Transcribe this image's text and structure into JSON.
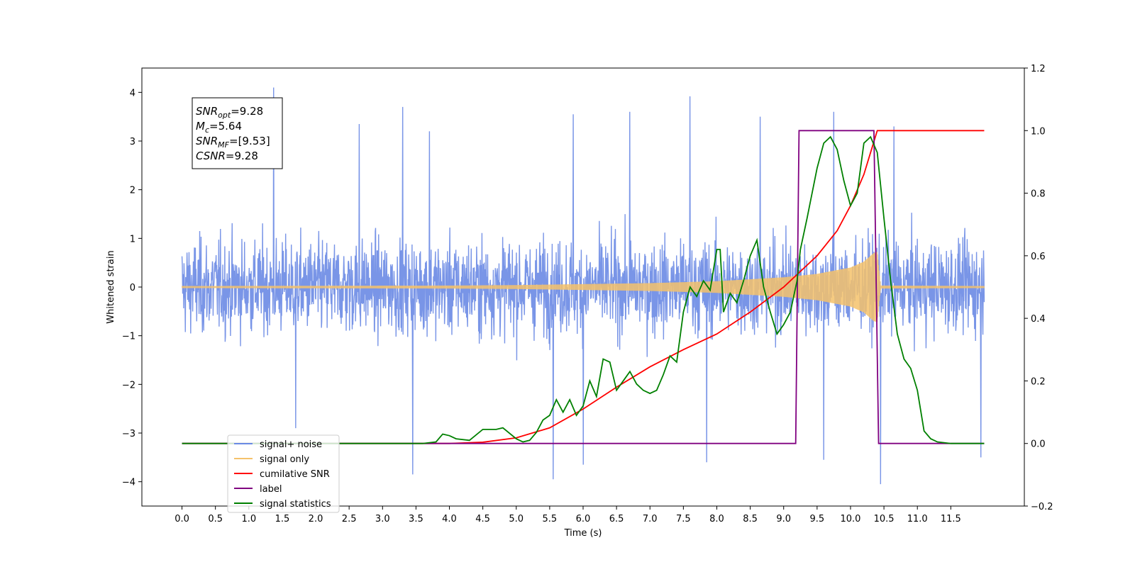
{
  "chart_data": {
    "type": "line",
    "xlabel": "Time (s)",
    "ylabel_left": "Whitened strain",
    "ylabel_right": "",
    "xlim": [
      -0.6,
      12.6
    ],
    "ylim_left": [
      -4.5,
      4.5
    ],
    "ylim_right": [
      -0.2,
      1.2
    ],
    "x_ticks": [
      0.0,
      0.5,
      1.0,
      1.5,
      2.0,
      2.5,
      3.0,
      3.5,
      4.0,
      4.5,
      5.0,
      5.5,
      6.0,
      6.5,
      7.0,
      7.5,
      8.0,
      8.5,
      9.0,
      9.5,
      10.0,
      10.5,
      11.0,
      11.5
    ],
    "x_tick_labels": [
      "0.0",
      "0.5",
      "1.0",
      "1.5",
      "2.0",
      "2.5",
      "3.0",
      "3.5",
      "4.0",
      "4.5",
      "5.0",
      "5.5",
      "6.0",
      "6.5",
      "7.0",
      "7.5",
      "8.0",
      "8.5",
      "9.0",
      "9.5",
      "10.0",
      "10.5",
      "11.0",
      "11.5"
    ],
    "y_ticks_left": [
      -4,
      -3,
      -2,
      -1,
      0,
      1,
      2,
      3,
      4
    ],
    "y_tick_labels_left": [
      "−4",
      "−3",
      "−2",
      "−1",
      "0",
      "1",
      "2",
      "3",
      "4"
    ],
    "y_ticks_right": [
      -0.2,
      0.0,
      0.2,
      0.4,
      0.6,
      0.8,
      1.0,
      1.2
    ],
    "y_tick_labels_right": [
      "−0.2",
      "0.0",
      "0.2",
      "0.4",
      "0.6",
      "0.8",
      "1.0",
      "1.2"
    ],
    "grid": false,
    "legend_position": "bottom-left",
    "annotation": {
      "lines": [
        {
          "var": "SNR",
          "sub": "opt",
          "value": "=9.28"
        },
        {
          "var": "M",
          "sub": "c",
          "value": "=5.64"
        },
        {
          "var": "SNR",
          "sub": "MF",
          "value": "=[9.53]"
        },
        {
          "var": "CSNR",
          "sub": "",
          "value": "=9.28"
        }
      ]
    },
    "series": [
      {
        "name": "signal+ noise",
        "color": "#6a8ae4",
        "axis": "left",
        "kind": "noise",
        "x_range": [
          0.0,
          12.0
        ],
        "typical_envelope": 2.0,
        "peaks": [
          {
            "x": 1.37,
            "y": 4.1
          },
          {
            "x": 2.65,
            "y": 3.35
          },
          {
            "x": 3.3,
            "y": 3.7
          },
          {
            "x": 3.7,
            "y": 3.2
          },
          {
            "x": 5.85,
            "y": 3.55
          },
          {
            "x": 6.7,
            "y": 3.6
          },
          {
            "x": 7.6,
            "y": 3.92
          },
          {
            "x": 8.65,
            "y": 3.5
          },
          {
            "x": 9.75,
            "y": 3.6
          },
          {
            "x": 10.65,
            "y": 3.3
          },
          {
            "x": 1.7,
            "y": -2.9
          },
          {
            "x": 3.45,
            "y": -3.85
          },
          {
            "x": 5.55,
            "y": -3.95
          },
          {
            "x": 6.0,
            "y": -3.65
          },
          {
            "x": 7.85,
            "y": -3.6
          },
          {
            "x": 9.6,
            "y": -3.55
          },
          {
            "x": 10.45,
            "y": -4.05
          },
          {
            "x": 11.95,
            "y": -3.5
          }
        ]
      },
      {
        "name": "signal only",
        "color": "#f5c26b",
        "axis": "left",
        "kind": "chirp",
        "x_range": [
          0.0,
          12.0
        ],
        "merger_time": 10.4,
        "envelope": [
          [
            0.0,
            0.02
          ],
          [
            4.0,
            0.03
          ],
          [
            5.0,
            0.04
          ],
          [
            6.0,
            0.06
          ],
          [
            7.0,
            0.08
          ],
          [
            8.0,
            0.12
          ],
          [
            9.0,
            0.2
          ],
          [
            9.5,
            0.27
          ],
          [
            10.0,
            0.4
          ],
          [
            10.2,
            0.52
          ],
          [
            10.35,
            0.7
          ],
          [
            10.4,
            0.72
          ],
          [
            10.45,
            0.03
          ],
          [
            12.0,
            0.02
          ]
        ]
      },
      {
        "name": "cumilative SNR",
        "color": "#ff0000",
        "axis": "right",
        "points": [
          [
            0.0,
            0.0
          ],
          [
            4.0,
            0.0
          ],
          [
            4.5,
            0.004
          ],
          [
            5.0,
            0.018
          ],
          [
            5.5,
            0.05
          ],
          [
            6.0,
            0.11
          ],
          [
            6.5,
            0.18
          ],
          [
            7.0,
            0.245
          ],
          [
            7.5,
            0.3
          ],
          [
            8.0,
            0.35
          ],
          [
            8.5,
            0.42
          ],
          [
            9.0,
            0.5
          ],
          [
            9.5,
            0.6
          ],
          [
            9.8,
            0.68
          ],
          [
            10.0,
            0.76
          ],
          [
            10.2,
            0.86
          ],
          [
            10.3,
            0.93
          ],
          [
            10.4,
            1.0
          ],
          [
            12.0,
            1.0
          ]
        ]
      },
      {
        "name": "label",
        "color": "#800080",
        "axis": "right",
        "points": [
          [
            0.0,
            0.0
          ],
          [
            9.18,
            0.0
          ],
          [
            9.23,
            1.0
          ],
          [
            10.35,
            1.0
          ],
          [
            10.42,
            0.0
          ],
          [
            12.0,
            0.0
          ]
        ]
      },
      {
        "name": "signal statistics",
        "color": "#008000",
        "axis": "right",
        "points": [
          [
            0.0,
            0.0
          ],
          [
            3.6,
            0.0
          ],
          [
            3.8,
            0.005
          ],
          [
            3.9,
            0.03
          ],
          [
            4.0,
            0.025
          ],
          [
            4.1,
            0.015
          ],
          [
            4.3,
            0.01
          ],
          [
            4.5,
            0.045
          ],
          [
            4.7,
            0.045
          ],
          [
            4.8,
            0.05
          ],
          [
            5.0,
            0.015
          ],
          [
            5.1,
            0.005
          ],
          [
            5.2,
            0.01
          ],
          [
            5.3,
            0.035
          ],
          [
            5.4,
            0.075
          ],
          [
            5.5,
            0.09
          ],
          [
            5.6,
            0.14
          ],
          [
            5.7,
            0.1
          ],
          [
            5.8,
            0.14
          ],
          [
            5.9,
            0.09
          ],
          [
            6.0,
            0.12
          ],
          [
            6.1,
            0.2
          ],
          [
            6.2,
            0.15
          ],
          [
            6.3,
            0.27
          ],
          [
            6.4,
            0.26
          ],
          [
            6.5,
            0.17
          ],
          [
            6.6,
            0.2
          ],
          [
            6.7,
            0.23
          ],
          [
            6.8,
            0.19
          ],
          [
            6.9,
            0.17
          ],
          [
            7.0,
            0.16
          ],
          [
            7.1,
            0.17
          ],
          [
            7.2,
            0.22
          ],
          [
            7.3,
            0.28
          ],
          [
            7.4,
            0.26
          ],
          [
            7.5,
            0.42
          ],
          [
            7.6,
            0.5
          ],
          [
            7.7,
            0.47
          ],
          [
            7.8,
            0.52
          ],
          [
            7.9,
            0.49
          ],
          [
            8.0,
            0.62
          ],
          [
            8.05,
            0.62
          ],
          [
            8.1,
            0.42
          ],
          [
            8.2,
            0.48
          ],
          [
            8.3,
            0.45
          ],
          [
            8.4,
            0.52
          ],
          [
            8.5,
            0.6
          ],
          [
            8.6,
            0.65
          ],
          [
            8.7,
            0.5
          ],
          [
            8.8,
            0.42
          ],
          [
            8.9,
            0.35
          ],
          [
            9.0,
            0.38
          ],
          [
            9.1,
            0.42
          ],
          [
            9.2,
            0.52
          ],
          [
            9.25,
            0.62
          ],
          [
            9.35,
            0.72
          ],
          [
            9.5,
            0.88
          ],
          [
            9.6,
            0.96
          ],
          [
            9.7,
            0.98
          ],
          [
            9.8,
            0.94
          ],
          [
            9.9,
            0.84
          ],
          [
            10.0,
            0.76
          ],
          [
            10.1,
            0.8
          ],
          [
            10.2,
            0.96
          ],
          [
            10.3,
            0.98
          ],
          [
            10.4,
            0.93
          ],
          [
            10.5,
            0.72
          ],
          [
            10.6,
            0.52
          ],
          [
            10.7,
            0.35
          ],
          [
            10.8,
            0.27
          ],
          [
            10.9,
            0.24
          ],
          [
            11.0,
            0.17
          ],
          [
            11.1,
            0.04
          ],
          [
            11.2,
            0.015
          ],
          [
            11.3,
            0.005
          ],
          [
            11.5,
            0.0
          ],
          [
            12.0,
            0.0
          ]
        ]
      }
    ],
    "legend": [
      {
        "name": "signal+ noise",
        "color": "#6a8ae4"
      },
      {
        "name": "signal only",
        "color": "#f5c26b"
      },
      {
        "name": "cumilative SNR",
        "color": "#ff0000"
      },
      {
        "name": "label",
        "color": "#800080"
      },
      {
        "name": "signal statistics",
        "color": "#008000"
      }
    ]
  }
}
